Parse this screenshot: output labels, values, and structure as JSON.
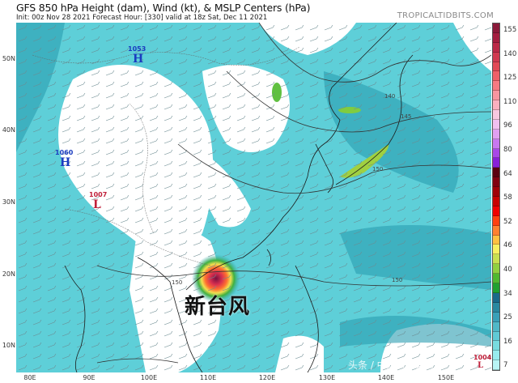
{
  "header": {
    "title": "GFS 850 hPa Height (dam), Wind (kt), & MSLP Centers (hPa)",
    "subtitle": "Init: 00z Nov 28 2021   Forecast Hour: [330]   valid at 18z Sat, Dec 11 2021",
    "brand": "TROPICALTIDBITS.COM"
  },
  "axes": {
    "lat_labels": [
      "50N",
      "40N",
      "30N",
      "20N",
      "10N"
    ],
    "lon_labels": [
      "80E",
      "90E",
      "100E",
      "110E",
      "120E",
      "130E",
      "140E",
      "150E"
    ]
  },
  "colorbar": {
    "unit": "kt",
    "labels": [
      "155",
      "140",
      "125",
      "110",
      "96",
      "80",
      "64",
      "58",
      "52",
      "46",
      "40",
      "34",
      "25",
      "16",
      "7"
    ],
    "colors_top_to_bottom": [
      "#8b1a3a",
      "#a41e40",
      "#bb2a48",
      "#d03a50",
      "#e24a56",
      "#ef6068",
      "#f57a82",
      "#f895a0",
      "#fab0bf",
      "#f8c8e0",
      "#f0c0f0",
      "#e0a0f0",
      "#c878f0",
      "#a848e8",
      "#8820d8",
      "#5a0010",
      "#800010",
      "#a00008",
      "#c80000",
      "#f00000",
      "#ff4010",
      "#ff8030",
      "#ffc040",
      "#f8f060",
      "#c8e050",
      "#90d040",
      "#50b830",
      "#20a030",
      "#1a6a8a",
      "#2a88a0",
      "#3aa0b8",
      "#50b8c8",
      "#60cad6",
      "#78dce0",
      "#98ecee",
      "#b8f4f4"
    ]
  },
  "pressure_centers": [
    {
      "value": "1053",
      "type": "H",
      "color": "#1a3cc0"
    },
    {
      "value": "1060",
      "type": "H",
      "color": "#1a3cc0"
    },
    {
      "value": "1007",
      "type": "L",
      "color": "#c0203a"
    },
    {
      "value": "1004",
      "type": "L",
      "color": "#c0203a"
    }
  ],
  "contour_labels": [
    "140",
    "145",
    "150",
    "150",
    "150"
  ],
  "watermark": "新台风",
  "corner_watermark": "头条 / 中国气象爱好者"
}
